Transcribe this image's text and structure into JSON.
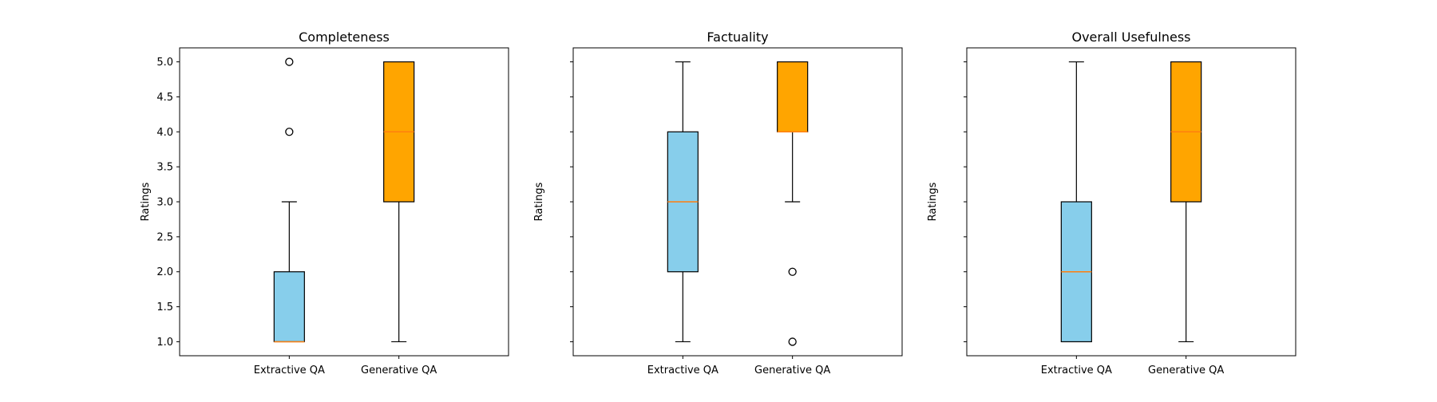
{
  "figure": {
    "background": "#ffffff"
  },
  "colors": {
    "extractive": "#87ceeb",
    "generative": "#ffa500",
    "median": "#ff7f0e",
    "stroke": "#000000"
  },
  "chart_data": [
    {
      "type": "box",
      "title": "Completeness",
      "xlabel": "",
      "ylabel": "Ratings",
      "ylim": [
        0.8,
        5.2
      ],
      "yticks": [
        "1.0",
        "1.5",
        "2.0",
        "2.5",
        "3.0",
        "3.5",
        "4.0",
        "4.5",
        "5.0"
      ],
      "show_ytick_labels": true,
      "categories": [
        "Extractive QA",
        "Generative QA"
      ],
      "boxes": [
        {
          "category": "Extractive QA",
          "whisker_low": 1,
          "q1": 1,
          "median": 1,
          "q3": 2,
          "whisker_high": 3,
          "outliers": [
            4,
            5
          ],
          "color": "#87ceeb"
        },
        {
          "category": "Generative QA",
          "whisker_low": 1,
          "q1": 3,
          "median": 4,
          "q3": 5,
          "whisker_high": 5,
          "outliers": [],
          "color": "#ffa500"
        }
      ]
    },
    {
      "type": "box",
      "title": "Factuality",
      "xlabel": "",
      "ylabel": "Ratings",
      "ylim": [
        0.8,
        5.2
      ],
      "yticks": [
        "1.0",
        "1.5",
        "2.0",
        "2.5",
        "3.0",
        "3.5",
        "4.0",
        "4.5",
        "5.0"
      ],
      "show_ytick_labels": false,
      "categories": [
        "Extractive QA",
        "Generative QA"
      ],
      "boxes": [
        {
          "category": "Extractive QA",
          "whisker_low": 1,
          "q1": 2,
          "median": 3,
          "q3": 4,
          "whisker_high": 5,
          "outliers": [],
          "color": "#87ceeb"
        },
        {
          "category": "Generative QA",
          "whisker_low": 3,
          "q1": 4,
          "median": 4,
          "q3": 5,
          "whisker_high": 5,
          "outliers": [
            2,
            1
          ],
          "color": "#ffa500"
        }
      ]
    },
    {
      "type": "box",
      "title": "Overall Usefulness",
      "xlabel": "",
      "ylabel": "Ratings",
      "ylim": [
        0.8,
        5.2
      ],
      "yticks": [
        "1.0",
        "1.5",
        "2.0",
        "2.5",
        "3.0",
        "3.5",
        "4.0",
        "4.5",
        "5.0"
      ],
      "show_ytick_labels": false,
      "categories": [
        "Extractive QA",
        "Generative QA"
      ],
      "boxes": [
        {
          "category": "Extractive QA",
          "whisker_low": 1,
          "q1": 1,
          "median": 2,
          "q3": 3,
          "whisker_high": 5,
          "outliers": [],
          "color": "#87ceeb"
        },
        {
          "category": "Generative QA",
          "whisker_low": 1,
          "q1": 3,
          "median": 4,
          "q3": 5,
          "whisker_high": 5,
          "outliers": [],
          "color": "#ffa500"
        }
      ]
    }
  ]
}
